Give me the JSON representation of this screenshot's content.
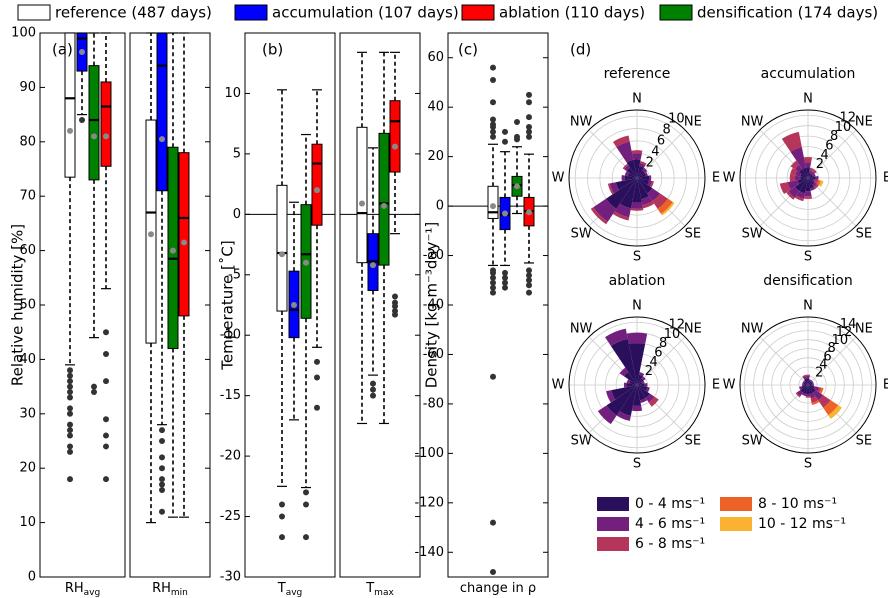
{
  "legend": [
    {
      "name": "reference (487 days)",
      "color": "#ffffff"
    },
    {
      "name": "accumulation (107 days)",
      "color": "#0000ff"
    },
    {
      "name": "ablation (110 days)",
      "color": "#ff0000"
    },
    {
      "name": "densification (174 days)",
      "color": "#008000"
    }
  ],
  "chart_data": [
    {
      "type": "box",
      "label": "(a)",
      "ylabel": "Relative humidity [%]",
      "ylim": [
        0,
        100
      ],
      "yticks": [
        0,
        10,
        20,
        30,
        40,
        50,
        60,
        70,
        80,
        90,
        100
      ],
      "subplots": [
        {
          "xlabel": "RH",
          "xlabel_sub": "avg",
          "boxes": [
            {
              "color": "#ffffff",
              "whislo": 39,
              "q1": 73.5,
              "med": 88,
              "q3": 100,
              "whishi": 100,
              "mean": 82,
              "fliers": [
                38,
                37,
                36,
                35,
                34,
                33,
                31,
                30,
                28,
                27,
                26,
                24,
                23,
                18
              ]
            },
            {
              "color": "#0000ff",
              "whislo": 85,
              "q1": 93,
              "med": 99,
              "q3": 100,
              "whishi": 100,
              "mean": 96.5,
              "fliers": [
                84
              ]
            },
            {
              "color": "#008000",
              "whislo": 44,
              "q1": 73,
              "med": 84,
              "q3": 94,
              "whishi": 100,
              "mean": 81,
              "fliers": [
                35,
                34
              ]
            },
            {
              "color": "#ff0000",
              "whislo": 53,
              "q1": 75.5,
              "med": 86.5,
              "q3": 91,
              "whishi": 100,
              "mean": 81,
              "fliers": [
                45,
                41,
                36,
                29,
                26,
                24,
                18
              ]
            }
          ]
        },
        {
          "xlabel": "RH",
          "xlabel_sub": "min",
          "boxes": [
            {
              "color": "#ffffff",
              "whislo": 10,
              "q1": 43,
              "med": 67,
              "q3": 84,
              "whishi": 100,
              "mean": 63,
              "fliers": []
            },
            {
              "color": "#0000ff",
              "whislo": 28,
              "q1": 71,
              "med": 94,
              "q3": 100,
              "whishi": 100,
              "mean": 80.5,
              "fliers": [
                27,
                25,
                22,
                20,
                18,
                17,
                16,
                12
              ]
            },
            {
              "color": "#008000",
              "whislo": 11,
              "q1": 42,
              "med": 58.5,
              "q3": 79,
              "whishi": 100,
              "mean": 60,
              "fliers": []
            },
            {
              "color": "#ff0000",
              "whislo": 11,
              "q1": 48,
              "med": 66,
              "q3": 78,
              "whishi": 100,
              "mean": 61.5,
              "fliers": []
            }
          ]
        }
      ]
    },
    {
      "type": "box",
      "label": "(b)",
      "ylabel": "Temperature [˚C]",
      "ylim": [
        -30,
        15
      ],
      "yticks": [
        -30,
        -25,
        -20,
        -15,
        -10,
        -5,
        0,
        5,
        10
      ],
      "hline": 0,
      "subplots": [
        {
          "xlabel": "T",
          "xlabel_sub": "avg",
          "boxes": [
            {
              "color": "#ffffff",
              "whislo": -22.5,
              "q1": -8,
              "med": -3.2,
              "q3": 2.4,
              "whishi": 10.3,
              "mean": -3.3,
              "fliers": [
                -24,
                -25,
                -26.7
              ]
            },
            {
              "color": "#0000ff",
              "whislo": -17,
              "q1": -10.2,
              "med": -7.9,
              "q3": -4.7,
              "whishi": 1,
              "mean": -7.5,
              "fliers": []
            },
            {
              "color": "#008000",
              "whislo": -22.6,
              "q1": -8.6,
              "med": -3.3,
              "q3": 0.8,
              "whishi": 6.6,
              "mean": -4,
              "fliers": [
                -23,
                -24,
                -26.7
              ]
            },
            {
              "color": "#ff0000",
              "whislo": -11,
              "q1": -0.9,
              "med": 4.2,
              "q3": 5.8,
              "whishi": 10.3,
              "mean": 2,
              "fliers": [
                -12.2,
                -13.5,
                -16
              ]
            }
          ]
        },
        {
          "xlabel": "T",
          "xlabel_sub": "max",
          "boxes": [
            {
              "color": "#ffffff",
              "whislo": -17.3,
              "q1": -4,
              "med": 0.1,
              "q3": 7.2,
              "whishi": 13.4,
              "mean": 0.9,
              "fliers": []
            },
            {
              "color": "#0000ff",
              "whislo": -13.3,
              "q1": -6.3,
              "med": -3.9,
              "q3": -1.6,
              "whishi": 5.5,
              "mean": -4.2,
              "fliers": [
                -14,
                -14.5,
                -15
              ]
            },
            {
              "color": "#008000",
              "whislo": -17.3,
              "q1": -4.2,
              "med": 0.9,
              "q3": 6.7,
              "whishi": 13.4,
              "mean": 0.7,
              "fliers": []
            },
            {
              "color": "#ff0000",
              "whislo": -1.6,
              "q1": 3.5,
              "med": 7.7,
              "q3": 9.4,
              "whishi": 13.4,
              "mean": 5.6,
              "fliers": [
                -6.8,
                -7.3,
                -7.6,
                -8,
                -8.3
              ]
            }
          ]
        }
      ]
    },
    {
      "type": "box",
      "label": "(c)",
      "ylabel": "Density [kg m⁻³day⁻¹]",
      "ylim": [
        -150,
        70
      ],
      "yticks": [
        -140,
        -120,
        -100,
        -80,
        -60,
        -40,
        -20,
        0,
        20,
        40,
        60
      ],
      "hline": 0,
      "subplots": [
        {
          "xlabel": "change in ρ",
          "boxes": [
            {
              "color": "#ffffff",
              "whislo": -24,
              "q1": -5,
              "med": -2.5,
              "q3": 8,
              "whishi": 25,
              "mean": 0,
              "fliers": [
                56,
                51,
                42,
                35,
                33,
                32,
                30,
                28,
                -26,
                -27,
                -29,
                -31,
                -33,
                -35,
                -69,
                -128,
                -148
              ]
            },
            {
              "color": "#0000ff",
              "whislo": -24,
              "q1": -9.5,
              "med": -3.5,
              "q3": 3.5,
              "whishi": 22,
              "mean": -3,
              "fliers": [
                26,
                30,
                -27,
                -29,
                -31,
                -33
              ]
            },
            {
              "color": "#008000",
              "whislo": -3,
              "q1": 4,
              "med": 8.5,
              "q3": 12,
              "whishi": 24,
              "mean": 8,
              "fliers": [
                27,
                28,
                34
              ]
            },
            {
              "color": "#ff0000",
              "whislo": -23,
              "q1": -8,
              "med": -2,
              "q3": 3.5,
              "whishi": 21,
              "mean": -2.5,
              "fliers": [
                45,
                42,
                36,
                32,
                30,
                28,
                -26,
                -28,
                -30,
                -32,
                -35
              ]
            }
          ]
        }
      ]
    },
    {
      "type": "windrose",
      "label": "(d)",
      "categories": [
        "N",
        null,
        "NE",
        null,
        "E",
        null,
        "SE",
        null,
        "S",
        null,
        "SW",
        null,
        "W",
        null,
        "NW",
        null
      ],
      "legend": [
        {
          "name": "0 - 4 ms⁻¹",
          "color": "#2a0f5c"
        },
        {
          "name": "4 - 6 ms⁻¹",
          "color": "#731f7e"
        },
        {
          "name": "6 - 8 ms⁻¹",
          "color": "#b5365a"
        },
        {
          "name": "8 - 10 ms⁻¹",
          "color": "#ec6227"
        },
        {
          "name": "10 - 12 ms⁻¹",
          "color": "#fbb230"
        }
      ],
      "panels": [
        {
          "title": "reference",
          "rlim": [
            0,
            11
          ],
          "rticks": [
            2,
            4,
            6,
            8,
            10
          ],
          "series": [
            {
              "values": [
                3,
                2,
                1.5,
                1.5,
                2,
                2,
                3,
                3.5,
                4,
                5,
                6,
                3.5,
                2,
                1.5,
                2,
                3
              ]
            },
            {
              "values": [
                1,
                0.5,
                0.5,
                0.3,
                0.3,
                0.5,
                1.5,
                1,
                1,
                1.5,
                2.5,
                1,
                0.5,
                0.5,
                0.5,
                3
              ]
            },
            {
              "values": [
                0.5,
                0.3,
                0,
                0,
                0,
                0.3,
                1.5,
                0.5,
                0.3,
                0.5,
                0.5,
                0.3,
                0,
                0,
                0.3,
                1
              ]
            },
            {
              "values": [
                0,
                0,
                0,
                0,
                0,
                0,
                1,
                0,
                0,
                0,
                0,
                0,
                0,
                0,
                0,
                0
              ]
            },
            {
              "values": [
                0,
                0,
                0,
                0,
                0,
                0,
                0.3,
                0,
                0,
                0,
                0,
                0,
                0,
                0,
                0,
                0
              ]
            }
          ]
        },
        {
          "title": "accumulation",
          "rlim": [
            0,
            13
          ],
          "rticks": [
            2,
            4,
            6,
            8,
            10,
            12
          ],
          "series": [
            {
              "values": [
                2,
                1,
                1,
                1,
                1.5,
                1,
                1.5,
                2,
                2.5,
                3,
                3,
                2,
                1.5,
                1.5,
                2,
                2
              ]
            },
            {
              "values": [
                1,
                0.5,
                0.5,
                0.5,
                0.5,
                0.5,
                0.5,
                0.5,
                1,
                1,
                1.5,
                2,
                1,
                1,
                1,
                4
              ]
            },
            {
              "values": [
                1,
                0.5,
                0.5,
                0,
                0,
                0.5,
                0.5,
                0,
                0.5,
                0.5,
                0.5,
                1.5,
                1,
                1,
                1,
                3
              ]
            },
            {
              "values": [
                0,
                0,
                0,
                0,
                0,
                0.5,
                0,
                0,
                0,
                0,
                0,
                0,
                0,
                0,
                0,
                0
              ]
            },
            {
              "values": [
                0,
                0,
                0,
                0,
                0,
                0.5,
                0,
                0,
                0,
                0,
                0,
                0,
                0,
                0,
                0,
                0
              ]
            }
          ]
        },
        {
          "title": "ablation",
          "rlim": [
            0,
            13
          ],
          "rticks": [
            2,
            4,
            6,
            8,
            10,
            12
          ],
          "series": [
            {
              "values": [
                8,
                2,
                1.5,
                1,
                1.5,
                2,
                3,
                3,
                4,
                6,
                7,
                5,
                2,
                1.5,
                3,
                9
              ]
            },
            {
              "values": [
                2,
                0.5,
                0.5,
                0.5,
                0.5,
                0.5,
                1,
                0.5,
                1,
                1,
                2,
                1,
                0.5,
                0.5,
                1,
                2
              ]
            },
            {
              "values": [
                0,
                0,
                0,
                0,
                0,
                0,
                1,
                0,
                0,
                0,
                0,
                0,
                0,
                0,
                0,
                0
              ]
            },
            {
              "values": [
                0,
                0,
                0,
                0,
                0,
                0,
                0,
                0,
                0,
                0,
                0,
                0,
                0,
                0,
                0,
                0
              ]
            },
            {
              "values": [
                0,
                0,
                0,
                0,
                0,
                0,
                0,
                0,
                0,
                0,
                0,
                0,
                0,
                0,
                0,
                0
              ]
            }
          ]
        },
        {
          "title": "densification",
          "rlim": [
            0,
            15
          ],
          "rticks": [
            2,
            4,
            6,
            8,
            10,
            12,
            14
          ],
          "series": [
            {
              "values": [
                1.5,
                1,
                1,
                1,
                1,
                1.5,
                2,
                2,
                2,
                2,
                2,
                1.5,
                1,
                1,
                1,
                1.5
              ]
            },
            {
              "values": [
                0.5,
                0.3,
                0.3,
                0.3,
                0.3,
                1,
                2,
                1,
                0.5,
                0.5,
                1,
                0.5,
                0.3,
                0.3,
                0.3,
                0.5
              ]
            },
            {
              "values": [
                0.3,
                0,
                0,
                0,
                0,
                0.5,
                2,
                1,
                0.3,
                0,
                0.3,
                0,
                0,
                0,
                0,
                0.3
              ]
            },
            {
              "values": [
                0,
                0,
                0,
                0,
                0,
                0.5,
                2,
                0.5,
                0,
                0,
                0,
                0,
                0,
                0,
                0,
                0
              ]
            },
            {
              "values": [
                0,
                0,
                0,
                0,
                0,
                0,
                1,
                0,
                0,
                0,
                0,
                0,
                0,
                0,
                0,
                0
              ]
            }
          ]
        }
      ]
    }
  ]
}
